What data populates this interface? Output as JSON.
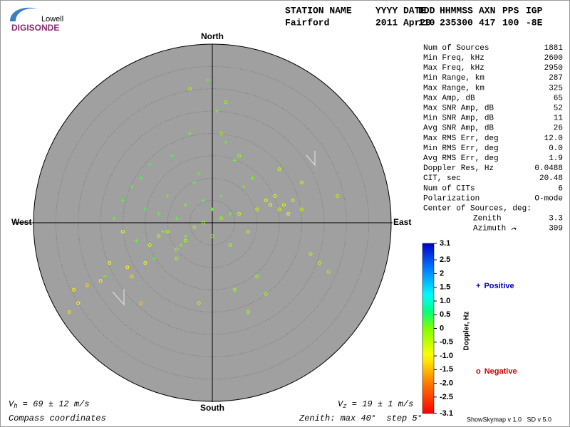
{
  "logo": {
    "top": "Lowell",
    "bottom": "DIGISONDE"
  },
  "header": {
    "labels": [
      "STATION NAME",
      "YYYY DATE",
      "DDD",
      "HHMMSS",
      "AXN",
      "PPS",
      "IGP"
    ],
    "values": [
      "Fairford",
      "2011 Apr20",
      "110",
      "235300",
      "417",
      "100",
      "-8E"
    ]
  },
  "stats": {
    "rows": [
      [
        "Num of Sources",
        "1881"
      ],
      [
        "Min Freq, kHz",
        "2600"
      ],
      [
        "Max Freq, kHz",
        "2950"
      ],
      [
        "Min Range, km",
        "287"
      ],
      [
        "Max Range, km",
        "325"
      ],
      [
        "Max Amp, dB",
        "65"
      ],
      [
        "Max SNR Amp, dB",
        "52"
      ],
      [
        "Min SNR Amp, dB",
        "11"
      ],
      [
        "Avg SNR Amp, dB",
        "26"
      ],
      [
        "Max RMS Err, deg",
        "12.0"
      ],
      [
        "Min RMS Err, deg",
        "0.0"
      ],
      [
        "Avg RMS Err, deg",
        "1.9"
      ],
      [
        "Doppler Res, Hz",
        "0.0488"
      ],
      [
        "CIT, sec",
        "20.48"
      ],
      [
        "Num of CITs",
        "6"
      ],
      [
        "Polarization",
        "O-mode"
      ]
    ],
    "center_title": "Center of Sources, deg:",
    "center": [
      [
        "Zenith",
        "3.3"
      ],
      [
        "Azimuth",
        "309"
      ]
    ]
  },
  "chart_data": {
    "type": "skymap",
    "directions": {
      "north": "North",
      "south": "South",
      "east": "East",
      "west": "West"
    },
    "rlim": [
      0,
      40
    ],
    "rticks": [
      5,
      10,
      15,
      20,
      25,
      30,
      35,
      40
    ],
    "series": [
      {
        "name": "Positive",
        "marker": "+",
        "color": "#0000aa",
        "x": [
          -20,
          -18,
          -15,
          -12,
          -10,
          -8,
          -6,
          -4,
          -2,
          0,
          2,
          4,
          -14,
          -9,
          -16,
          -22,
          -5,
          1,
          3,
          -11,
          -7,
          -3,
          -13,
          -17,
          5,
          7,
          -1,
          -6,
          9,
          -24
        ],
        "y": [
          5,
          8,
          3,
          2,
          6,
          1,
          4,
          9,
          5,
          3,
          6,
          2,
          13,
          15,
          10,
          1,
          20,
          25,
          18,
          -2,
          -5,
          11,
          -8,
          -4,
          14,
          8,
          32,
          -3,
          10,
          -12
        ],
        "doppler": [
          0.3,
          0.2,
          0.3,
          0.2,
          0.1,
          0.2,
          0.1,
          0.3,
          0.2,
          0.1,
          0.2,
          0.1,
          0.4,
          0.3,
          0.3,
          0.2,
          0.2,
          0.1,
          0.2,
          0.1,
          0.1,
          0.2,
          0.3,
          0.2,
          0.1,
          0.1,
          0.2,
          0.1,
          0.1,
          0.2
        ]
      },
      {
        "name": "Negative",
        "marker": "o",
        "color": "#cc0000",
        "x": [
          -31,
          -32,
          -30,
          -28,
          -25,
          -23,
          -19,
          -18,
          -16,
          -15,
          -14,
          -12,
          -10,
          -8,
          -6,
          -4,
          -2,
          0,
          2,
          4,
          6,
          8,
          10,
          12,
          13,
          14,
          15,
          16,
          17,
          18,
          20,
          22,
          24,
          26,
          10,
          5,
          -3,
          -8,
          8,
          12,
          3,
          -5,
          15,
          20,
          28,
          -20,
          2,
          6
        ],
        "y": [
          -15,
          -20,
          -18,
          -14,
          -13,
          -9,
          -10,
          -12,
          -18,
          -9,
          -5,
          -3,
          -2,
          -6,
          -4,
          -1,
          0,
          -3,
          1,
          -5,
          2,
          -2,
          3,
          5,
          4,
          6,
          3,
          4,
          2,
          5,
          3,
          -7,
          -9,
          -11,
          -12,
          -15,
          -18,
          -8,
          -20,
          -16,
          27,
          30,
          12,
          9,
          6,
          -2,
          20,
          15
        ],
        "doppler": [
          -1.1,
          -1.2,
          -1.0,
          -1.3,
          -1.1,
          -0.9,
          -1.0,
          -1.2,
          -1.4,
          -0.8,
          -0.6,
          -0.5,
          -0.4,
          -0.3,
          -0.3,
          -0.2,
          -0.2,
          -0.1,
          -0.2,
          -0.3,
          -0.4,
          -0.5,
          -0.6,
          -0.7,
          -0.8,
          -0.7,
          -0.6,
          -0.7,
          -0.8,
          -0.6,
          -0.5,
          -0.4,
          -0.3,
          -0.3,
          -0.2,
          -0.3,
          -0.4,
          -0.2,
          -0.3,
          -0.2,
          -0.1,
          -0.2,
          -0.5,
          -0.6,
          -0.4,
          -1.0,
          -0.1,
          -0.2
        ]
      }
    ],
    "colorbar": {
      "label": "Doppler, Hz",
      "clim": [
        -3.1,
        3.1
      ],
      "ticks": [
        3.1,
        2.5,
        2,
        1.5,
        {
          "value": 1,
          "label": "1.0"
        },
        0.5,
        0,
        -0.5,
        {
          "value": -1,
          "label": "-1.0"
        },
        -1.5,
        {
          "value": -2,
          "label": "-2.0"
        },
        -2.5,
        -3.1
      ]
    }
  },
  "footer": {
    "vh": {
      "symbol": "V",
      "subscript": "h",
      "text": " = 69 ± 12 m/s"
    },
    "vz": {
      "symbol": "V",
      "subscript": "z",
      "text": " = 19 ± 1 m/s"
    },
    "coords": "Compass coordinates",
    "zenith": "Zenith: max 40°  step 5°",
    "version": "ShowSkymap v 1.0   SD v 5.0"
  }
}
